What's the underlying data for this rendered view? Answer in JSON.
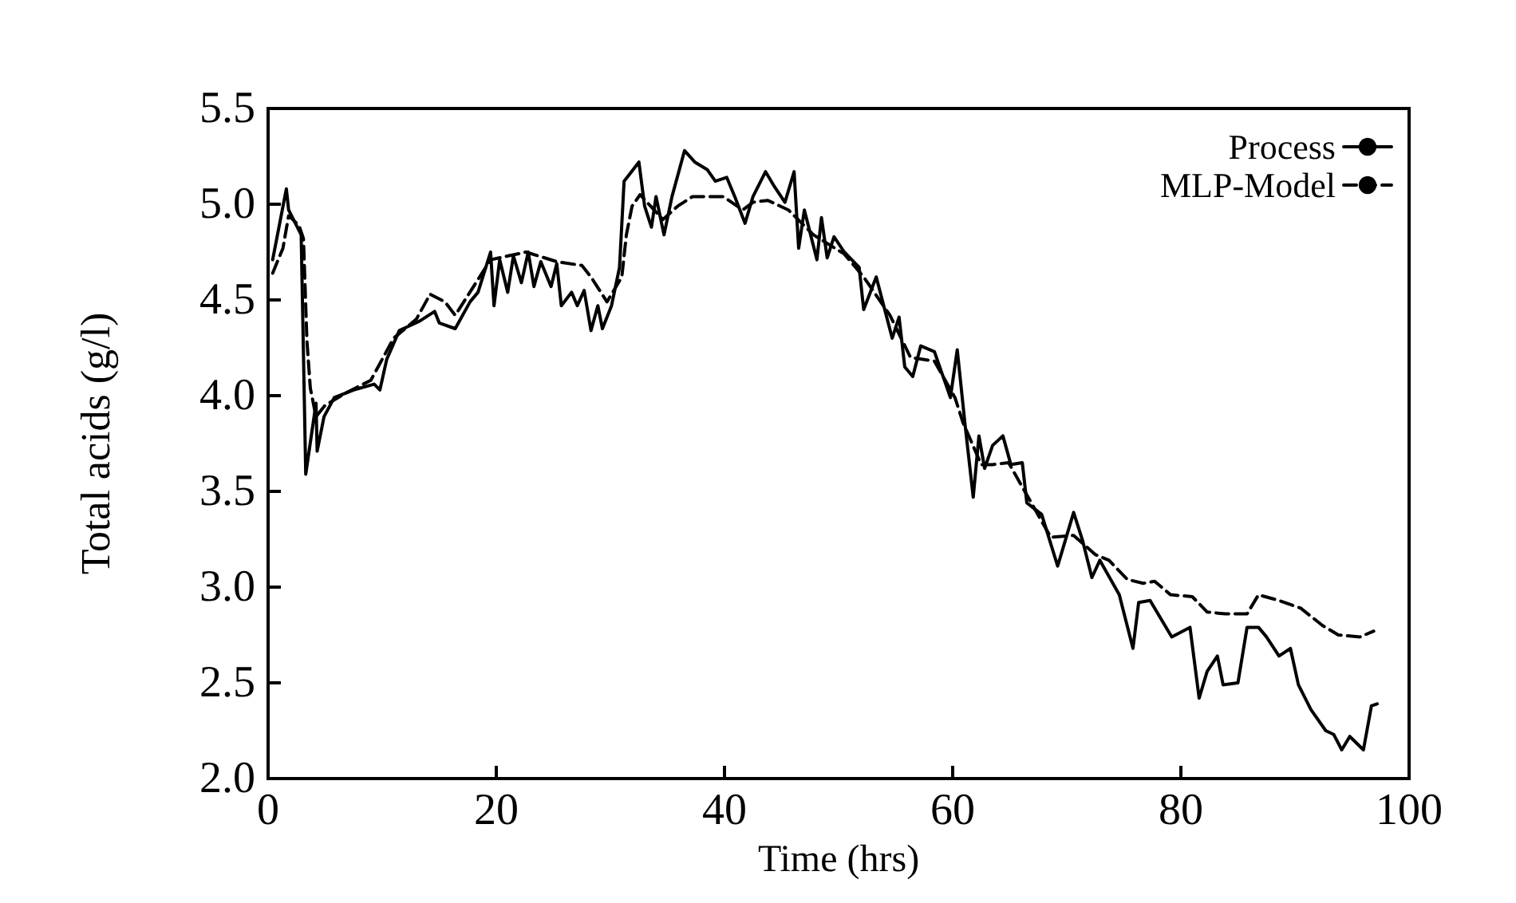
{
  "chart_data": {
    "type": "line",
    "xlabel": "Time (hrs)",
    "ylabel": "Total acids (g/l)",
    "xlim": [
      0,
      100
    ],
    "xticks": [
      0,
      20,
      40,
      60,
      80,
      100
    ],
    "ylim": [
      2,
      5.5
    ],
    "yticks": [
      {
        "value": 2,
        "label": "2.0"
      },
      {
        "value": 2.5,
        "label": "2.5"
      },
      {
        "value": 3,
        "label": "3.0"
      },
      {
        "value": 3.5,
        "label": "3.5"
      },
      {
        "value": 4,
        "label": "4.0"
      },
      {
        "value": 4.5,
        "label": "4.5"
      },
      {
        "value": 5,
        "label": "5.0"
      },
      {
        "value": 5.5,
        "label": "5.5"
      }
    ],
    "grid": false,
    "legend": "top right",
    "marker": "none",
    "series": [
      {
        "name": "Process",
        "color": "#000000",
        "line_style": "solid",
        "x": [
          0.4,
          1.6,
          1.8,
          2.9,
          3.3,
          4.2,
          4.3,
          4.9,
          5.8,
          7.5,
          9.3,
          9.8,
          10.4,
          11.5,
          13.3,
          14.6,
          15,
          16.4,
          17.7,
          18.4,
          19.5,
          19.8,
          20.3,
          21,
          21.5,
          22.2,
          22.8,
          23.3,
          23.9,
          24.8,
          25.3,
          25.7,
          26.6,
          27.1,
          27.7,
          28.3,
          28.9,
          29.3,
          30.1,
          30.8,
          31.2,
          32.5,
          33,
          33.6,
          34,
          34.7,
          35.4,
          36.5,
          37.4,
          38.5,
          39.2,
          40.2,
          40.9,
          41.8,
          42.5,
          43.6,
          44.4,
          45.3,
          46.1,
          46.5,
          47,
          48.1,
          48.5,
          49,
          49.6,
          50.5,
          51.8,
          52.2,
          53.3,
          54.7,
          55.3,
          55.8,
          56.5,
          57.2,
          58.4,
          59.8,
          60.4,
          61.1,
          61.8,
          62.3,
          62.8,
          63.5,
          64.4,
          65.1,
          66.1,
          66.5,
          67.8,
          69.2,
          70.6,
          71.4,
          72.2,
          72.9,
          74.6,
          75.8,
          76.3,
          77.3,
          79.2,
          80.8,
          81.6,
          82.3,
          83.2,
          83.7,
          85,
          85.8,
          86.8,
          87.5,
          88.6,
          89.6,
          90.3,
          91.4,
          92.7,
          93.4,
          94.1,
          94.8,
          96,
          96.7,
          97.2
        ],
        "values": [
          4.71,
          5.08,
          4.97,
          4.84,
          3.59,
          3.96,
          3.71,
          3.89,
          3.99,
          4.03,
          4.06,
          4.03,
          4.19,
          4.34,
          4.39,
          4.44,
          4.38,
          4.35,
          4.49,
          4.54,
          4.75,
          4.47,
          4.71,
          4.54,
          4.73,
          4.59,
          4.75,
          4.57,
          4.7,
          4.57,
          4.69,
          4.47,
          4.54,
          4.47,
          4.55,
          4.34,
          4.47,
          4.35,
          4.47,
          4.67,
          5.12,
          5.22,
          4.99,
          4.88,
          5.04,
          4.84,
          5.04,
          5.28,
          5.22,
          5.18,
          5.12,
          5.14,
          5.04,
          4.9,
          5.04,
          5.17,
          5.09,
          5.01,
          5.17,
          4.77,
          4.97,
          4.71,
          4.93,
          4.72,
          4.83,
          4.75,
          4.67,
          4.45,
          4.62,
          4.3,
          4.41,
          4.15,
          4.1,
          4.26,
          4.23,
          3.99,
          4.24,
          3.84,
          3.47,
          3.79,
          3.62,
          3.74,
          3.79,
          3.64,
          3.65,
          3.44,
          3.38,
          3.11,
          3.39,
          3.24,
          3.05,
          3.14,
          2.96,
          2.68,
          2.92,
          2.93,
          2.74,
          2.79,
          2.42,
          2.56,
          2.64,
          2.49,
          2.5,
          2.79,
          2.79,
          2.74,
          2.64,
          2.68,
          2.49,
          2.36,
          2.25,
          2.23,
          2.15,
          2.22,
          2.15,
          2.38,
          2.39
        ]
      },
      {
        "name": "MLP-Model",
        "color": "#000000",
        "line_style": "dashed",
        "x": [
          0.4,
          1.3,
          1.8,
          2.7,
          3.1,
          3.4,
          3.7,
          4.2,
          5,
          7,
          9,
          11,
          13,
          14.2,
          15.5,
          16.4,
          19.5,
          22.6,
          25.3,
          27.5,
          28.3,
          29.7,
          31,
          31.4,
          31.9,
          32.6,
          34.6,
          35.9,
          37.2,
          39.9,
          41.6,
          42.5,
          43.8,
          45.6,
          47.8,
          50.5,
          52.2,
          54.5,
          56.3,
          58.4,
          60.2,
          60.9,
          62.5,
          63.5,
          64.9,
          66.7,
          68.6,
          70.6,
          72.5,
          73.7,
          75.3,
          76.7,
          77.7,
          79.1,
          81,
          82.3,
          83.9,
          85.8,
          86.8,
          88.6,
          90.5,
          92.4,
          93.8,
          95.7,
          96.9
        ],
        "values": [
          4.64,
          4.77,
          4.94,
          4.89,
          4.82,
          4.29,
          4.04,
          3.89,
          3.95,
          4.02,
          4.08,
          4.3,
          4.4,
          4.53,
          4.49,
          4.42,
          4.71,
          4.75,
          4.7,
          4.68,
          4.62,
          4.49,
          4.62,
          4.84,
          4.99,
          5.05,
          4.92,
          4.99,
          5.04,
          5.04,
          4.97,
          5.01,
          5.02,
          4.97,
          4.84,
          4.74,
          4.62,
          4.42,
          4.2,
          4.18,
          3.99,
          3.86,
          3.64,
          3.64,
          3.65,
          3.46,
          3.26,
          3.27,
          3.17,
          3.14,
          3.04,
          3.02,
          3.03,
          2.96,
          2.95,
          2.87,
          2.86,
          2.86,
          2.96,
          2.93,
          2.89,
          2.8,
          2.75,
          2.74,
          2.77
        ]
      }
    ]
  }
}
